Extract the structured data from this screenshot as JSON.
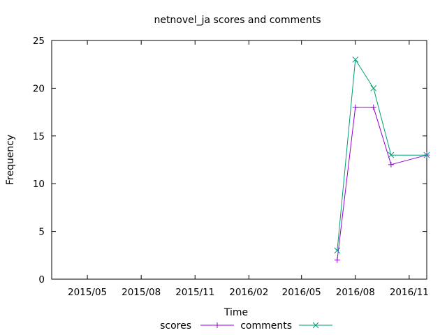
{
  "chart_data": {
    "type": "line",
    "title": "netnovel_ja scores and comments",
    "xlabel": "Time",
    "ylabel": "Frequency",
    "ylim": [
      0,
      25
    ],
    "yticks": [
      "0",
      "5",
      "10",
      "15",
      "20",
      "25"
    ],
    "xlim": [
      "2015-03-01",
      "2016-12-01"
    ],
    "xticks": [
      {
        "date": "2015-05-01",
        "label": "2015/05"
      },
      {
        "date": "2015-08-01",
        "label": "2015/08"
      },
      {
        "date": "2015-11-01",
        "label": "2015/11"
      },
      {
        "date": "2016-02-01",
        "label": "2016/02"
      },
      {
        "date": "2016-05-01",
        "label": "2016/05"
      },
      {
        "date": "2016-08-01",
        "label": "2016/08"
      },
      {
        "date": "2016-11-01",
        "label": "2016/11"
      }
    ],
    "x": [
      "2016-07-01",
      "2016-08-01",
      "2016-09-01",
      "2016-10-01",
      "2016-12-01"
    ],
    "series": [
      {
        "name": "scores",
        "color": "#9400d3",
        "marker": "plus",
        "values": [
          2,
          18,
          18,
          12,
          13
        ]
      },
      {
        "name": "comments",
        "color": "#009e73",
        "marker": "cross",
        "values": [
          3,
          23,
          20,
          13,
          13
        ]
      }
    ],
    "grid": false,
    "legend": "bottom-center"
  }
}
